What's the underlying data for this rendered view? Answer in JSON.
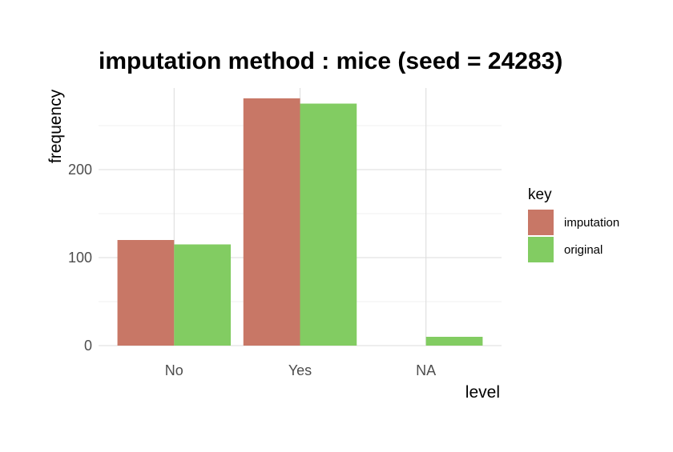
{
  "chart_data": {
    "type": "bar",
    "title": "imputation method : mice (seed = 24283)",
    "xlabel": "level",
    "ylabel": "frequency",
    "categories": [
      "No",
      "Yes",
      "NA"
    ],
    "series": [
      {
        "name": "imputation",
        "color": "#c87766",
        "values": [
          120,
          281,
          0
        ]
      },
      {
        "name": "original",
        "color": "#82cc62",
        "values": [
          115,
          275,
          10
        ]
      }
    ],
    "ylim": [
      0,
      290
    ],
    "yticks": [
      0,
      100,
      200
    ],
    "grid": true,
    "legend": {
      "title": "key",
      "position": "right"
    }
  }
}
